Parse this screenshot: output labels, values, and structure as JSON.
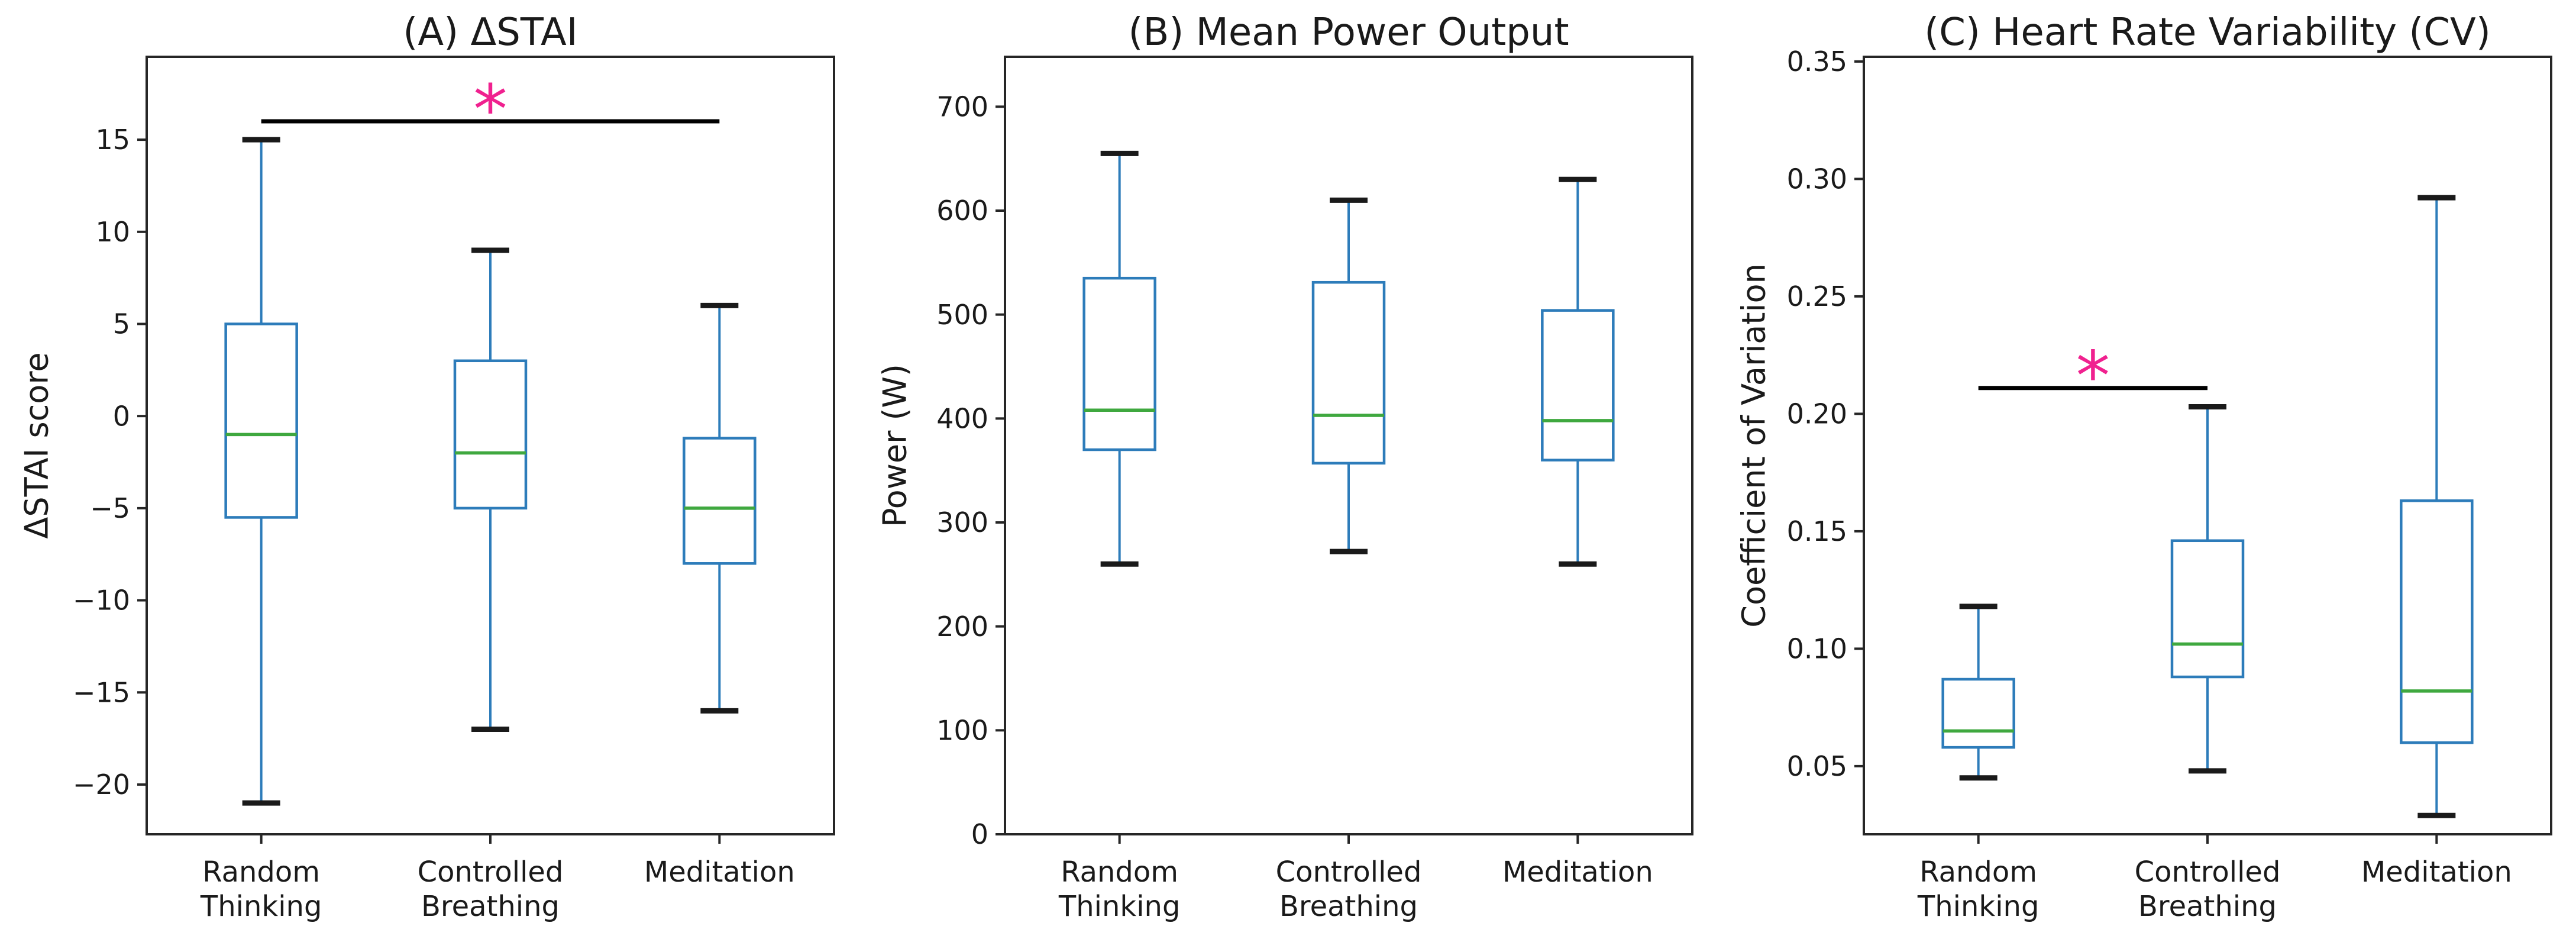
{
  "figure": {
    "kind": "three-panel boxplot figure",
    "background": "#ffffff"
  },
  "colors": {
    "box_line": "#2d7cba",
    "whisker_line": "#2d7cba",
    "cap_line": "#1a1a1a",
    "median_line": "#3fa83f",
    "significance_line": "#000000",
    "significance_marker": "#f0218f",
    "spine": "#262626",
    "text": "#1a1a1a"
  },
  "chart_data": [
    {
      "type": "box",
      "title": "(A) ΔSTAI",
      "ylabel": "ΔSTAI score",
      "categories": [
        "Random Thinking",
        "Controlled Breathing",
        "Meditation"
      ],
      "ylim": [
        -22.7,
        19.5
      ],
      "yticks": [
        15,
        10,
        5,
        0,
        -5,
        -10,
        -15,
        -20
      ],
      "ytick_labels": [
        "15",
        "10",
        "5",
        "0",
        "−5",
        "−10",
        "−15",
        "−20"
      ],
      "grid": false,
      "legend": null,
      "boxes": [
        {
          "category": "Random Thinking",
          "whisker_low": -21,
          "q1": -5.5,
          "median": -1,
          "q3": 5,
          "whisker_high": 15
        },
        {
          "category": "Controlled Breathing",
          "whisker_low": -17,
          "q1": -5,
          "median": -2,
          "q3": 3,
          "whisker_high": 9
        },
        {
          "category": "Meditation",
          "whisker_low": -16,
          "q1": -8,
          "median": -5,
          "q3": -1.2,
          "whisker_high": 6
        }
      ],
      "significance": {
        "between": [
          0,
          2
        ],
        "y": 16.0,
        "marker": "*"
      }
    },
    {
      "type": "box",
      "title": "(B) Mean Power Output",
      "ylabel": "Power (W)",
      "categories": [
        "Random Thinking",
        "Controlled Breathing",
        "Meditation"
      ],
      "ylim": [
        0,
        748
      ],
      "yticks": [
        700,
        600,
        500,
        400,
        300,
        200,
        100,
        0
      ],
      "ytick_labels": [
        "700",
        "600",
        "500",
        "400",
        "300",
        "200",
        "100",
        "0"
      ],
      "grid": false,
      "legend": null,
      "boxes": [
        {
          "category": "Random Thinking",
          "whisker_low": 260,
          "q1": 370,
          "median": 408,
          "q3": 535,
          "whisker_high": 655
        },
        {
          "category": "Controlled Breathing",
          "whisker_low": 272,
          "q1": 357,
          "median": 403,
          "q3": 531,
          "whisker_high": 610
        },
        {
          "category": "Meditation",
          "whisker_low": 260,
          "q1": 360,
          "median": 398,
          "q3": 504,
          "whisker_high": 630
        }
      ],
      "significance": null
    },
    {
      "type": "box",
      "title": "(C) Heart Rate Variability (CV)",
      "ylabel": "Coefficient of Variation",
      "categories": [
        "Random Thinking",
        "Controlled Breathing",
        "Meditation"
      ],
      "ylim": [
        0.021,
        0.352
      ],
      "yticks": [
        0.35,
        0.3,
        0.25,
        0.2,
        0.15,
        0.1,
        0.05
      ],
      "ytick_labels": [
        "0.35",
        "0.30",
        "0.25",
        "0.20",
        "0.15",
        "0.10",
        "0.05"
      ],
      "grid": false,
      "legend": null,
      "boxes": [
        {
          "category": "Random Thinking",
          "whisker_low": 0.045,
          "q1": 0.058,
          "median": 0.065,
          "q3": 0.087,
          "whisker_high": 0.118
        },
        {
          "category": "Controlled Breathing",
          "whisker_low": 0.048,
          "q1": 0.088,
          "median": 0.102,
          "q3": 0.146,
          "whisker_high": 0.203
        },
        {
          "category": "Meditation",
          "whisker_low": 0.029,
          "q1": 0.06,
          "median": 0.082,
          "q3": 0.163,
          "whisker_high": 0.292
        }
      ],
      "significance": {
        "between": [
          0,
          1
        ],
        "y": 0.211,
        "marker": "*"
      }
    }
  ]
}
